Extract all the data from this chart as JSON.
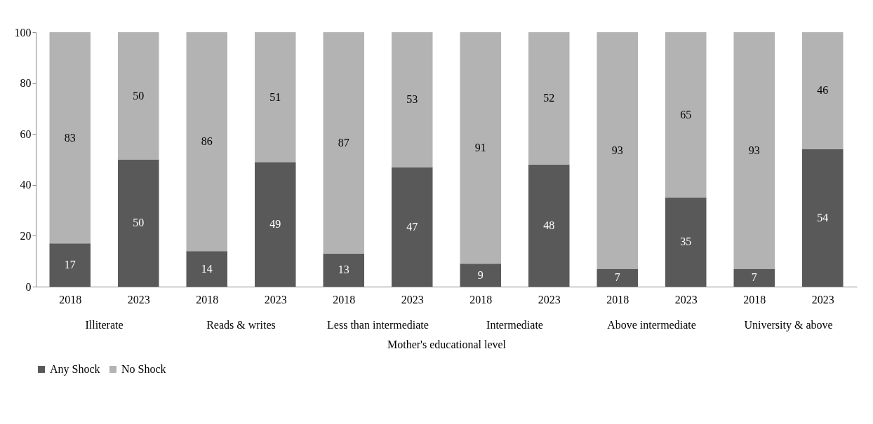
{
  "chart_data": {
    "type": "bar",
    "stacked": true,
    "xlabel": "Mother's educational level",
    "categories": [
      "2018",
      "2023",
      "2018",
      "2023",
      "2018",
      "2023",
      "2018",
      "2023",
      "2018",
      "2023",
      "2018",
      "2023"
    ],
    "annotations": [
      "Illiterate",
      "Reads & writes",
      "Less than intermediate",
      "Intermediate",
      "Above intermediate",
      "University & above"
    ],
    "series": [
      {
        "name": "Any Shock",
        "color": "#595959",
        "values": [
          17,
          50,
          14,
          49,
          13,
          47,
          9,
          48,
          7,
          35,
          7,
          54
        ]
      },
      {
        "name": "No Shock",
        "color": "#b3b3b3",
        "values": [
          83,
          50,
          86,
          51,
          87,
          53,
          91,
          52,
          93,
          65,
          93,
          46
        ]
      }
    ],
    "ylim": [
      0,
      100
    ],
    "yticks": [
      0,
      20,
      40,
      60,
      80,
      100
    ],
    "data_labels": true,
    "legend": "bottom",
    "grid": false
  }
}
